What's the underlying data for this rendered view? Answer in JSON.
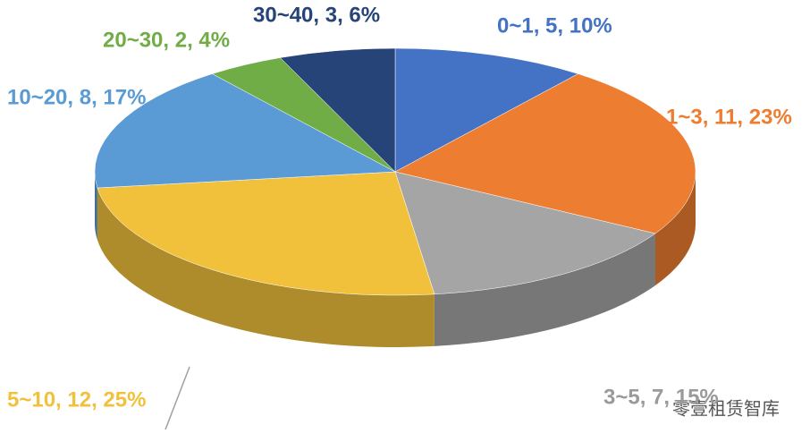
{
  "chart_data": {
    "type": "pie3d",
    "categories": [
      "0~1",
      "1~3",
      "3~5",
      "5~10",
      "10~20",
      "20~30",
      "30~40"
    ],
    "values": [
      5,
      11,
      7,
      12,
      8,
      2,
      3
    ],
    "value_labels": [
      "0~1, 5, 10%",
      "1~3, 11, 23%",
      "3~5, 7, 15%",
      "5~10, 12, 25%",
      "10~20, 8, 17%",
      "20~30, 2, 4%",
      "30~40, 3, 6%"
    ],
    "colors": [
      "#4472c4",
      "#ed7d31",
      "#a5a5a5",
      "#f2c13c",
      "#5b9bd5",
      "#70ad47",
      "#264478"
    ],
    "watermark": "零壹租赁智库"
  }
}
